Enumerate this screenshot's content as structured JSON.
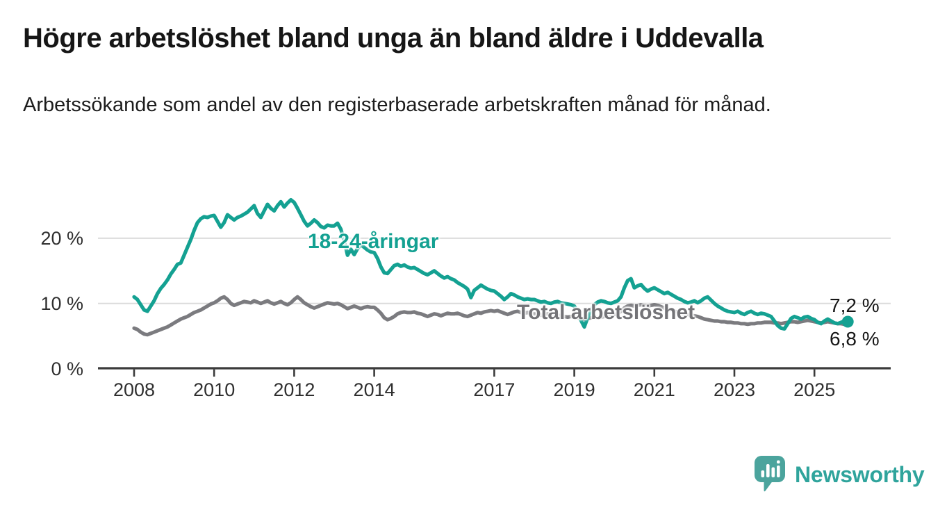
{
  "page": {
    "background": "#FFFFFF"
  },
  "header": {
    "title": "Högre arbetslöshet bland unga än bland äldre i Uddevalla",
    "subtitle": "Arbetssökande som andel av den registerbaserade arbetskraften månad för månad."
  },
  "chart_data": {
    "type": "line",
    "title": "Högre arbetslöshet bland unga än bland äldre i Uddevalla",
    "subtitle": "Arbetssökande som andel av den registerbaserade arbetskraften månad för månad.",
    "unit": "percent",
    "frequency": "monthly",
    "x_start": "2008-01",
    "x_end": "2025-11",
    "ylim": [
      0,
      27
    ],
    "grid": "horizontal",
    "legend_position": "inline-labels",
    "colors": {
      "accent_teal": "#14A192",
      "line_gray": "#7B7B7F",
      "gridline": "#DBDBDB",
      "axis": "#3B3B3B",
      "text": "#2F2F2F"
    },
    "y_ticks": [
      {
        "value": 0,
        "label": "0 %"
      },
      {
        "value": 10,
        "label": "10 %"
      },
      {
        "value": 20,
        "label": "20 %"
      }
    ],
    "x_tick_years": [
      2008,
      2010,
      2012,
      2014,
      2017,
      2019,
      2021,
      2023,
      2025
    ],
    "series": [
      {
        "name": "18-24-åringar",
        "color": "#14A192",
        "latest_label": "7,2 %",
        "latest_value": 7.2,
        "values": [
          11.0,
          10.6,
          9.8,
          9.0,
          8.8,
          9.6,
          10.4,
          11.5,
          12.3,
          12.9,
          13.6,
          14.5,
          15.2,
          16.0,
          16.2,
          17.4,
          18.6,
          19.8,
          21.2,
          22.4,
          23.0,
          23.3,
          23.2,
          23.4,
          23.5,
          22.6,
          21.7,
          22.4,
          23.6,
          23.2,
          22.8,
          23.2,
          23.4,
          23.7,
          24.0,
          24.5,
          25.0,
          23.8,
          23.2,
          24.2,
          25.2,
          24.6,
          24.2,
          25.0,
          25.6,
          24.8,
          25.4,
          25.9,
          25.5,
          24.6,
          23.6,
          22.6,
          21.9,
          22.3,
          22.8,
          22.4,
          21.8,
          21.6,
          22.0,
          21.9,
          21.9,
          22.3,
          21.4,
          19.6,
          17.4,
          18.3,
          17.5,
          18.4,
          19.0,
          18.6,
          18.2,
          17.9,
          17.8,
          16.9,
          15.6,
          14.7,
          14.6,
          15.2,
          15.8,
          16.0,
          15.7,
          15.9,
          15.6,
          15.4,
          15.5,
          15.2,
          14.9,
          14.6,
          14.4,
          14.7,
          15.0,
          14.6,
          14.2,
          13.9,
          14.1,
          13.8,
          13.6,
          13.2,
          12.9,
          12.6,
          12.2,
          10.9,
          12.0,
          12.4,
          12.8,
          12.5,
          12.2,
          12.0,
          11.9,
          11.5,
          11.1,
          10.6,
          11.0,
          11.5,
          11.3,
          11.0,
          10.8,
          10.6,
          10.7,
          10.6,
          10.6,
          10.4,
          10.2,
          10.3,
          10.1,
          10.0,
          10.2,
          10.3,
          10.1,
          10.0,
          9.9,
          9.8,
          9.6,
          8.8,
          7.4,
          6.4,
          7.8,
          9.0,
          9.8,
          10.2,
          10.4,
          10.3,
          10.1,
          10.0,
          10.2,
          10.4,
          11.0,
          12.4,
          13.5,
          13.8,
          12.4,
          12.7,
          12.9,
          12.3,
          11.9,
          12.2,
          12.4,
          12.1,
          11.8,
          11.5,
          11.7,
          11.4,
          11.1,
          10.8,
          10.6,
          10.3,
          10.1,
          10.2,
          10.4,
          10.1,
          10.4,
          10.8,
          11.0,
          10.5,
          10.0,
          9.6,
          9.3,
          9.0,
          8.8,
          8.7,
          8.6,
          8.8,
          8.5,
          8.3,
          8.6,
          8.8,
          8.5,
          8.3,
          8.5,
          8.4,
          8.2,
          8.0,
          7.3,
          6.6,
          6.2,
          6.1,
          6.9,
          7.7,
          8.0,
          7.8,
          7.6,
          7.9,
          8.0,
          7.7,
          7.5,
          7.1,
          6.9,
          7.3,
          7.6,
          7.3,
          7.0,
          6.9,
          7.1,
          7.3,
          7.2
        ]
      },
      {
        "name": "Total arbetslöshet",
        "color": "#7B7B7F",
        "latest_label": "6,8 %",
        "latest_value": 6.8,
        "values": [
          6.2,
          6.0,
          5.6,
          5.3,
          5.2,
          5.4,
          5.6,
          5.8,
          6.0,
          6.2,
          6.4,
          6.7,
          7.0,
          7.3,
          7.6,
          7.8,
          8.0,
          8.3,
          8.6,
          8.8,
          9.0,
          9.3,
          9.6,
          9.9,
          10.1,
          10.4,
          10.8,
          11.0,
          10.6,
          10.0,
          9.7,
          9.9,
          10.1,
          10.3,
          10.2,
          10.1,
          10.4,
          10.2,
          10.0,
          10.2,
          10.4,
          10.1,
          9.9,
          10.1,
          10.3,
          10.0,
          9.8,
          10.1,
          10.6,
          11.0,
          10.6,
          10.1,
          9.8,
          9.5,
          9.3,
          9.5,
          9.7,
          9.9,
          10.1,
          10.0,
          9.9,
          10.0,
          9.8,
          9.5,
          9.2,
          9.4,
          9.6,
          9.4,
          9.2,
          9.4,
          9.5,
          9.4,
          9.4,
          9.0,
          8.5,
          7.8,
          7.5,
          7.7,
          8.0,
          8.4,
          8.6,
          8.7,
          8.6,
          8.6,
          8.7,
          8.5,
          8.4,
          8.2,
          8.0,
          8.2,
          8.4,
          8.3,
          8.1,
          8.3,
          8.5,
          8.4,
          8.4,
          8.5,
          8.3,
          8.1,
          8.0,
          8.2,
          8.4,
          8.6,
          8.5,
          8.7,
          8.8,
          8.9,
          8.8,
          8.9,
          8.7,
          8.5,
          8.3,
          8.5,
          8.7,
          8.8,
          8.6,
          8.5,
          8.6,
          8.5,
          8.4,
          8.3,
          8.2,
          8.3,
          8.4,
          8.2,
          8.1,
          8.2,
          8.1,
          8.0,
          7.9,
          8.0,
          7.9,
          7.8,
          7.7,
          7.6,
          7.7,
          7.8,
          7.9,
          7.8,
          7.9,
          8.0,
          8.1,
          8.2,
          8.3,
          8.4,
          8.8,
          9.3,
          9.6,
          9.7,
          9.6,
          9.7,
          9.8,
          9.7,
          9.6,
          9.7,
          9.8,
          9.7,
          9.5,
          9.3,
          9.1,
          9.0,
          8.8,
          8.7,
          8.5,
          8.4,
          8.3,
          8.2,
          8.1,
          8.0,
          7.8,
          7.6,
          7.5,
          7.4,
          7.3,
          7.3,
          7.2,
          7.2,
          7.1,
          7.1,
          7.0,
          7.0,
          6.9,
          6.9,
          6.8,
          6.9,
          6.9,
          7.0,
          7.0,
          7.1,
          7.1,
          7.1,
          7.0,
          7.0,
          6.9,
          7.0,
          7.1,
          7.2,
          7.2,
          7.1,
          7.2,
          7.3,
          7.4,
          7.3,
          7.2,
          7.1,
          7.0,
          7.1,
          7.2,
          7.1,
          7.0,
          6.9,
          6.9,
          6.8,
          6.8
        ]
      }
    ]
  },
  "footer": {
    "brand": "Newsworthy"
  }
}
